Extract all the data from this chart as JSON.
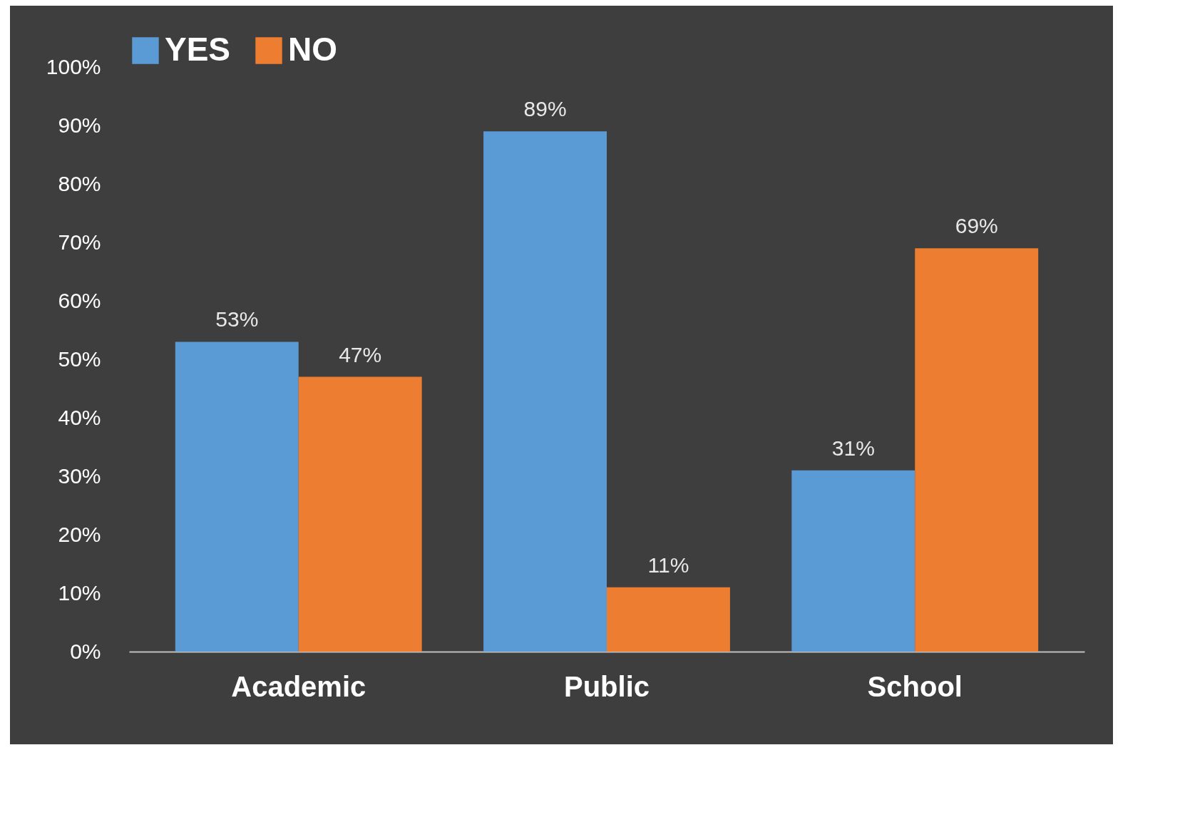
{
  "chart_data": {
    "type": "bar",
    "categories": [
      "Academic",
      "Public",
      "School"
    ],
    "series": [
      {
        "name": "YES",
        "color": "#5b9bd5",
        "values": [
          53,
          89,
          31
        ],
        "value_labels": [
          "53%",
          "89%",
          "31%"
        ]
      },
      {
        "name": "NO",
        "color": "#ed7d31",
        "values": [
          47,
          11,
          69
        ],
        "value_labels": [
          "47%",
          "11%",
          "69%"
        ]
      }
    ],
    "ylim": [
      0,
      100
    ],
    "yticks": [
      {
        "value": 0,
        "label": "0%"
      },
      {
        "value": 10,
        "label": "10%"
      },
      {
        "value": 20,
        "label": "20%"
      },
      {
        "value": 30,
        "label": "30%"
      },
      {
        "value": 40,
        "label": "40%"
      },
      {
        "value": 50,
        "label": "50%"
      },
      {
        "value": 60,
        "label": "60%"
      },
      {
        "value": 70,
        "label": "70%"
      },
      {
        "value": 80,
        "label": "80%"
      },
      {
        "value": 90,
        "label": "90%"
      },
      {
        "value": 100,
        "label": "100%"
      }
    ],
    "legend": "top"
  }
}
